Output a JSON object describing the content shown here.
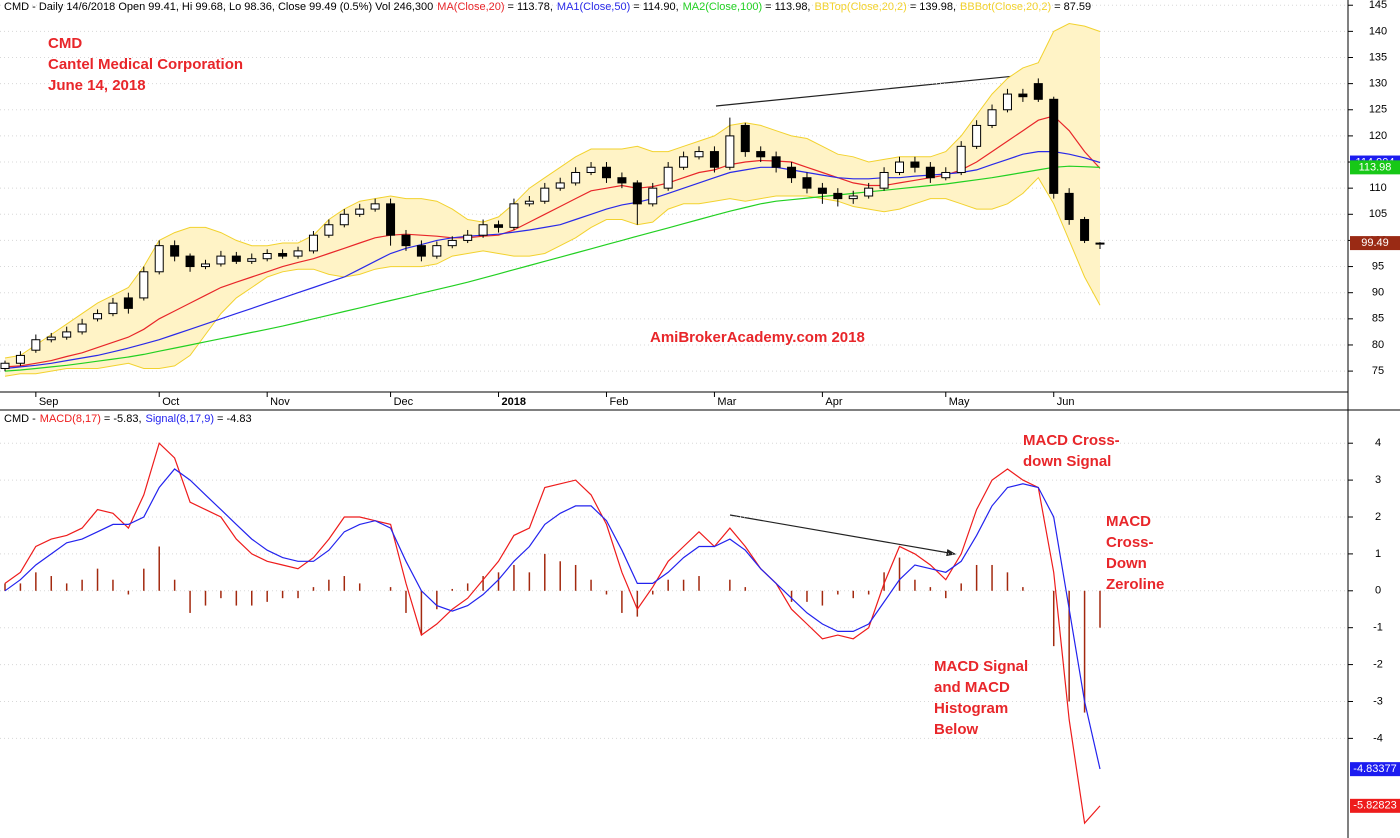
{
  "chart_data": [
    {
      "type": "candlestick",
      "header": "CMD - Daily 14/6/2018 Open 99.41, Hi 99.68, Lo 98.36, Close 99.49 (0.5%) Vol 246,300",
      "categories": [
        null,
        null,
        "Sep",
        null,
        null,
        null,
        null,
        null,
        null,
        null,
        "Oct",
        null,
        null,
        null,
        null,
        null,
        null,
        "Nov",
        null,
        null,
        null,
        null,
        null,
        null,
        null,
        "Dec",
        null,
        null,
        null,
        null,
        null,
        null,
        "2018",
        null,
        null,
        null,
        null,
        null,
        null,
        "Feb",
        null,
        null,
        null,
        null,
        null,
        null,
        "Mar",
        null,
        null,
        null,
        null,
        null,
        null,
        "Apr",
        null,
        null,
        null,
        null,
        null,
        null,
        null,
        "May",
        null,
        null,
        null,
        null,
        null,
        null,
        "Jun",
        null,
        null,
        null
      ],
      "open": [
        75.5,
        76.5,
        79,
        81,
        81.5,
        82.5,
        85,
        86,
        89,
        89,
        94,
        99,
        97,
        95,
        95.5,
        97,
        96,
        96.5,
        97.5,
        97,
        98,
        101,
        103,
        105,
        106,
        107,
        101,
        99,
        97,
        99,
        100,
        101,
        103,
        102.5,
        107,
        107.5,
        110,
        111,
        113,
        114,
        112,
        111,
        107,
        110,
        114,
        116,
        117,
        114,
        122,
        117,
        116,
        114,
        112,
        110,
        109,
        108,
        108.5,
        110,
        113,
        115,
        114,
        112,
        113,
        118,
        122,
        125,
        128,
        130,
        127,
        109,
        104,
        99.41
      ],
      "high": [
        77,
        78.8,
        82,
        82.3,
        83.5,
        85,
        86.8,
        89,
        90,
        95,
        100,
        100,
        97.5,
        96.3,
        98,
        97.8,
        97.5,
        98.3,
        98.3,
        98.8,
        101.8,
        104,
        106,
        107,
        108,
        108,
        102,
        100,
        99.8,
        100.8,
        102,
        104,
        103.8,
        108,
        108.5,
        111,
        112,
        114,
        115,
        115,
        113,
        111.5,
        111,
        115,
        117,
        118,
        118,
        123.5,
        122.5,
        118,
        117,
        115,
        113,
        111,
        110,
        109.5,
        111,
        114,
        116,
        116,
        115,
        114,
        119,
        123,
        126,
        129,
        129,
        131,
        127.5,
        110,
        104.5,
        99.68
      ],
      "low": [
        75,
        76,
        78.5,
        80.5,
        81,
        82,
        84.5,
        85.5,
        86,
        88.5,
        93.5,
        96,
        94,
        94.5,
        95,
        95.5,
        95.5,
        96,
        96.5,
        96.5,
        97.5,
        100.5,
        102.5,
        104.5,
        105.5,
        99,
        98,
        96,
        96.5,
        98.5,
        99.5,
        100.5,
        101.5,
        102,
        106.5,
        107,
        109.5,
        110.5,
        112.5,
        111,
        110,
        103,
        106.5,
        109.5,
        113.5,
        115.5,
        113,
        113.5,
        116,
        115,
        113,
        111,
        109,
        107,
        106.5,
        107,
        108,
        109.5,
        112.5,
        113,
        111,
        111.5,
        112.5,
        117.5,
        121.5,
        124.5,
        126.5,
        126.5,
        108,
        103,
        99.5,
        98.36
      ],
      "close": [
        76.5,
        78,
        81,
        81.5,
        82.5,
        84,
        86,
        88,
        87,
        94,
        99,
        97,
        95,
        95.5,
        97,
        96,
        96.5,
        97.5,
        97,
        98,
        101,
        103,
        105,
        106,
        107,
        101,
        99,
        97,
        99,
        100,
        101,
        103,
        102.5,
        107,
        107.5,
        110,
        111,
        113,
        114,
        112,
        111,
        107,
        110,
        114,
        116,
        117,
        114,
        120,
        117,
        116,
        114,
        112,
        110,
        109,
        108,
        108.5,
        110,
        113,
        115,
        114,
        112,
        113,
        118,
        122,
        125,
        128,
        127.5,
        127,
        109,
        104,
        100,
        99.49
      ],
      "up_color": "#ffffff",
      "down_color": "#000000",
      "wick_color": "#000000",
      "bollinger": {
        "fill": "#fff3c6",
        "color": "#f2d22e",
        "series": [
          {
            "name": "BBTop(Close,20,2)",
            "legend_value": "= 139.98,",
            "values": [
              77.5,
              78,
              80,
              82,
              84,
              86,
              88,
              89.5,
              91,
              95,
              100,
              101.5,
              102.5,
              102.5,
              101.5,
              100,
              99,
              99,
              99.5,
              99.5,
              101,
              104,
              106,
              107.5,
              108,
              108.5,
              108,
              108,
              107.5,
              106,
              104,
              103.5,
              104.5,
              107,
              110,
              112,
              114,
              116,
              117.5,
              117.5,
              117.5,
              118,
              117,
              117,
              118,
              119,
              120,
              122,
              122.5,
              122,
              121,
              120,
              119.5,
              118,
              116.5,
              116,
              115,
              115.5,
              116,
              116,
              116,
              117,
              120,
              124,
              128,
              131,
              133,
              134,
              140,
              141.5,
              141,
              139.98
            ]
          },
          {
            "name": "BBBot(Close,20,2)",
            "legend_value": "= 87.59",
            "values": [
              74,
              74.5,
              74.5,
              75,
              75.5,
              75.5,
              75.5,
              76,
              76.5,
              75.5,
              75.5,
              76,
              78,
              82,
              86,
              89,
              91,
              93,
              94,
              94.5,
              94.5,
              93.5,
              93,
              93.5,
              94.5,
              95,
              95,
              95,
              95.5,
              97,
              97.5,
              98,
              97.5,
              97,
              97,
              97.5,
              99,
              100.5,
              102.5,
              104,
              104,
              103,
              103.5,
              106,
              107,
              107,
              107.5,
              108,
              107.5,
              108,
              108.5,
              108.5,
              108.5,
              108,
              107.5,
              106.5,
              106,
              105.5,
              106,
              107,
              108,
              108,
              107,
              106,
              106,
              107,
              109,
              112,
              107,
              100,
              93,
              87.59
            ]
          }
        ]
      },
      "series": [
        {
          "name": "MA(Close,20)",
          "legend_value": "= 113.78,",
          "color": "#e8262a",
          "values": [
            75.8,
            76,
            76.5,
            77,
            77.8,
            78.5,
            79.5,
            80.5,
            81.5,
            83,
            85,
            86.5,
            88,
            89.5,
            91,
            92,
            93,
            94,
            95,
            95.8,
            96.5,
            97.5,
            98.5,
            99.5,
            100.5,
            101,
            101.2,
            101,
            100.8,
            100.5,
            100.5,
            100.8,
            101,
            102,
            103.5,
            105,
            106.5,
            108,
            109.5,
            110,
            110.5,
            110,
            110.3,
            111,
            112,
            113,
            113.5,
            114.5,
            115,
            115.3,
            115.2,
            115,
            114,
            113,
            112,
            111,
            110.5,
            110.5,
            111,
            111.5,
            112,
            112.5,
            113.5,
            115,
            117,
            119,
            121,
            123,
            123.8,
            121,
            117,
            113.78
          ]
        },
        {
          "name": "MA1(Close,50)",
          "legend_value": "= 114.90,",
          "color": "#2a2ae8",
          "values": [
            75.5,
            75.8,
            76.1,
            76.5,
            77,
            77.5,
            78,
            78.7,
            79.4,
            80.2,
            81,
            82,
            83,
            84,
            85,
            86,
            87,
            88,
            89,
            90,
            91,
            92,
            93,
            94.5,
            96,
            97.5,
            98.5,
            99.2,
            100,
            100.5,
            100.8,
            101,
            101.2,
            101.6,
            102,
            102.5,
            103,
            104,
            105,
            106,
            106.8,
            107.3,
            108,
            109,
            110,
            111,
            112,
            113,
            113.5,
            114,
            114,
            113.5,
            113,
            112.5,
            112,
            111.8,
            111.8,
            112,
            112,
            112.3,
            112.5,
            112.7,
            113,
            113.5,
            114.5,
            115.5,
            116.5,
            117,
            117,
            116.5,
            115.8,
            114.9
          ]
        },
        {
          "name": "MA2(Close,100)",
          "legend_value": "= 113.98,",
          "color": "#22d022",
          "values": [
            75,
            75.2,
            75.5,
            75.8,
            76.1,
            76.5,
            76.9,
            77.3,
            77.7,
            78.2,
            78.8,
            79.4,
            80,
            80.6,
            81.2,
            81.8,
            82.4,
            83,
            83.6,
            84.3,
            85,
            85.7,
            86.4,
            87.1,
            87.8,
            88.5,
            89.2,
            89.9,
            90.6,
            91.3,
            92,
            92.8,
            93.6,
            94.4,
            95.2,
            96,
            96.8,
            97.6,
            98.4,
            99.2,
            100,
            100.8,
            101.6,
            102.4,
            103.2,
            104,
            104.8,
            105.6,
            106.3,
            107,
            107.5,
            107.8,
            108.1,
            108.4,
            108.7,
            109,
            109.3,
            109.6,
            109.9,
            110.2,
            110.5,
            110.8,
            111.2,
            111.6,
            112,
            112.5,
            113,
            113.5,
            114,
            114.2,
            114.1,
            113.98
          ]
        }
      ],
      "ylim": [
        71,
        146
      ],
      "yticks": [
        75,
        80,
        85,
        90,
        95,
        100,
        105,
        110,
        115,
        120,
        125,
        130,
        135,
        140,
        145
      ],
      "grid": true,
      "markers": [
        {
          "value": 114.904,
          "color": "#1c1cf0"
        },
        {
          "value": 113.98,
          "color": "#17c817"
        },
        {
          "value": 99.49,
          "color": "#9a2a14"
        }
      ],
      "annotations": [
        {
          "lines": [
            "CMD",
            "Cantel Medical Corporation",
            "June 14, 2018"
          ]
        },
        {
          "lines": [
            "AmiBrokerAcademy.com  2018"
          ]
        }
      ]
    },
    {
      "type": "macd",
      "header": "CMD -",
      "series": [
        {
          "name": "MACD(8,17)",
          "legend_value": "= -5.83,",
          "type": "line",
          "color": "#ee1c1c",
          "values": [
            0.2,
            0.5,
            1.2,
            1.4,
            1.5,
            1.7,
            2.2,
            2.1,
            1.7,
            2.6,
            4.0,
            3.6,
            2.4,
            2.2,
            2.0,
            1.4,
            1.0,
            0.8,
            0.7,
            0.6,
            0.9,
            1.4,
            2.0,
            2.0,
            1.9,
            1.8,
            0.2,
            -1.2,
            -0.9,
            -0.5,
            -0.2,
            0.3,
            0.8,
            1.5,
            1.7,
            2.8,
            2.9,
            3.0,
            2.6,
            1.8,
            0.5,
            -0.5,
            0.1,
            0.8,
            1.2,
            1.6,
            1.2,
            1.7,
            1.2,
            0.6,
            0.2,
            -0.5,
            -0.9,
            -1.3,
            -1.2,
            -1.3,
            -1.0,
            0.2,
            1.2,
            1.0,
            0.7,
            0.3,
            1.0,
            2.2,
            3.0,
            3.3,
            3.0,
            2.8,
            0.5,
            -3.5,
            -6.3,
            -5.83
          ]
        },
        {
          "name": "Signal(8,17,9)",
          "legend_value": "= -4.83",
          "type": "line",
          "color": "#2323ee",
          "values": [
            0.0,
            0.3,
            0.7,
            1.0,
            1.3,
            1.4,
            1.6,
            1.8,
            1.8,
            2.0,
            2.8,
            3.3,
            3.0,
            2.6,
            2.2,
            1.8,
            1.4,
            1.1,
            0.9,
            0.8,
            0.8,
            1.1,
            1.6,
            1.8,
            1.9,
            1.7,
            0.8,
            0.0,
            -0.4,
            -0.55,
            -0.4,
            -0.1,
            0.3,
            0.8,
            1.2,
            1.8,
            2.1,
            2.3,
            2.3,
            1.9,
            1.1,
            0.2,
            0.2,
            0.5,
            0.9,
            1.2,
            1.2,
            1.4,
            1.1,
            0.6,
            0.2,
            -0.2,
            -0.6,
            -0.9,
            -1.1,
            -1.1,
            -0.9,
            -0.3,
            0.3,
            0.7,
            0.6,
            0.5,
            0.8,
            1.5,
            2.3,
            2.8,
            2.9,
            2.8,
            2.0,
            -0.5,
            -3.0,
            -4.83
          ]
        },
        {
          "type": "bar",
          "color": "#a3290f",
          "values": [
            0.2,
            0.2,
            0.5,
            0.4,
            0.2,
            0.3,
            0.6,
            0.3,
            -0.1,
            0.6,
            1.2,
            0.3,
            -0.6,
            -0.4,
            -0.2,
            -0.4,
            -0.4,
            -0.3,
            -0.2,
            -0.2,
            0.1,
            0.3,
            0.4,
            0.2,
            0,
            0.1,
            -0.6,
            -1.2,
            -0.5,
            0.05,
            0.2,
            0.4,
            0.5,
            0.7,
            0.5,
            1.0,
            0.8,
            0.7,
            0.3,
            -0.1,
            -0.6,
            -0.7,
            -0.1,
            0.3,
            0.3,
            0.4,
            0,
            0.3,
            0.1,
            0,
            0,
            -0.3,
            -0.3,
            -0.4,
            -0.1,
            -0.2,
            -0.1,
            0.5,
            0.9,
            0.3,
            0.1,
            -0.2,
            0.2,
            0.7,
            0.7,
            0.5,
            0.1,
            0,
            -1.5,
            -3.0,
            -3.3,
            -1.0
          ]
        }
      ],
      "ylim": [
        -6.7,
        4.9
      ],
      "yticks": [
        -4,
        -3,
        -2,
        -1,
        0,
        1,
        2,
        3,
        4
      ],
      "grid": true,
      "markers": [
        {
          "value": -4.83377,
          "color": "#1c1cf0"
        },
        {
          "value": -5.82823,
          "color": "#ee1c1c"
        }
      ],
      "annotations": [
        {
          "lines": [
            "MACD Cross-",
            "down Signal"
          ]
        },
        {
          "lines": [
            "MACD",
            "Cross-",
            "Down",
            "Zeroline"
          ]
        },
        {
          "lines": [
            "MACD Signal",
            "and MACD",
            "Histogram",
            "Below"
          ]
        }
      ]
    }
  ]
}
